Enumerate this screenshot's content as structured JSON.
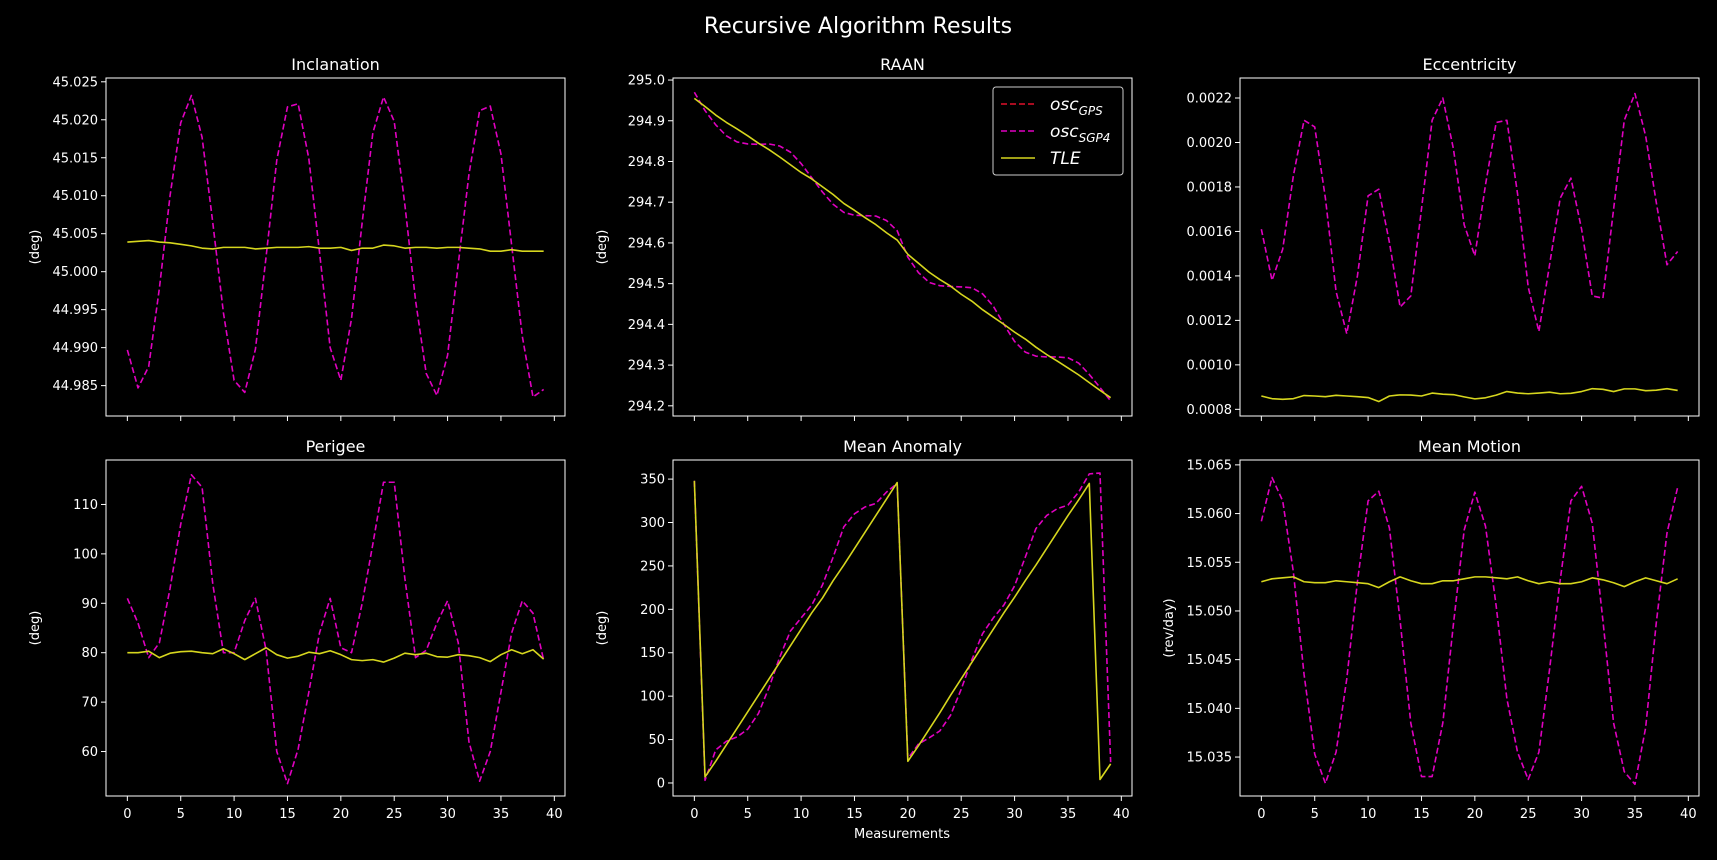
{
  "figure": {
    "title": "Recursive Algorithm Results",
    "xlabel": "Measurements"
  },
  "colors": {
    "background": "#000000",
    "axes": "#ffffff",
    "osc_gps": "#e0102a",
    "osc_sgp4": "#e000c0",
    "tle": "#d6d61e"
  },
  "legend": {
    "placement": "top-right",
    "panel": "raan",
    "entries": [
      {
        "key": "osc_gps",
        "base": "osc",
        "sub": "GPS",
        "style": "dashed"
      },
      {
        "key": "osc_sgp4",
        "base": "osc",
        "sub": "SGP4",
        "style": "dashed"
      },
      {
        "key": "tle",
        "base": "TLE",
        "sub": "",
        "style": "solid"
      }
    ]
  },
  "chart_data": [
    {
      "id": "inclination",
      "type": "line",
      "title": "Inclanation",
      "ylabel": "(deg)",
      "xlabel": "",
      "xlim": [
        -2,
        41
      ],
      "ylim": [
        44.981,
        45.0255
      ],
      "xticks": [
        0,
        5,
        10,
        15,
        20,
        25,
        30,
        35,
        40
      ],
      "xtick_labels": [
        "",
        "",
        "",
        "",
        "",
        "",
        "",
        "",
        ""
      ],
      "yticks": [
        44.985,
        44.99,
        44.995,
        45.0,
        45.005,
        45.01,
        45.015,
        45.02,
        45.025
      ],
      "ytick_labels": [
        "44.985",
        "44.990",
        "44.995",
        "45.000",
        "45.005",
        "45.010",
        "45.015",
        "45.020",
        "45.025"
      ],
      "series": [
        {
          "key": "osc_sgp4",
          "values": [
            44.9897,
            44.9847,
            44.9875,
            44.9978,
            45.01,
            45.0196,
            45.0232,
            45.0177,
            45.0065,
            44.9946,
            44.9857,
            44.9841,
            44.9898,
            45.002,
            45.0147,
            45.0217,
            45.0221,
            45.0149,
            45.0026,
            44.99,
            44.9857,
            44.9938,
            45.0065,
            45.0183,
            45.023,
            45.0198,
            45.0088,
            44.9962,
            44.9866,
            44.9837,
            44.989,
            45.001,
            45.0128,
            45.0212,
            45.0218,
            45.0155,
            45.0035,
            44.9915,
            44.9835,
            44.9845
          ]
        },
        {
          "key": "tle",
          "values": [
            45.0039,
            45.004,
            45.0041,
            45.0039,
            45.0038,
            45.0036,
            45.0034,
            45.0031,
            45.003,
            45.0032,
            45.0032,
            45.0032,
            45.003,
            45.0031,
            45.0032,
            45.0032,
            45.0032,
            45.0033,
            45.0031,
            45.0031,
            45.0032,
            45.0028,
            45.0031,
            45.0031,
            45.0035,
            45.0034,
            45.0031,
            45.0032,
            45.0032,
            45.0031,
            45.0032,
            45.0032,
            45.0031,
            45.003,
            45.0027,
            45.0027,
            45.0029,
            45.0027,
            45.0027,
            45.0027
          ]
        }
      ]
    },
    {
      "id": "raan",
      "type": "line",
      "title": "RAAN",
      "ylabel": "(deg)",
      "xlabel": "",
      "xlim": [
        -2,
        41
      ],
      "ylim": [
        294.175,
        295.005
      ],
      "xticks": [
        0,
        5,
        10,
        15,
        20,
        25,
        30,
        35,
        40
      ],
      "xtick_labels": [
        "",
        "",
        "",
        "",
        "",
        "",
        "",
        "",
        ""
      ],
      "yticks": [
        294.2,
        294.3,
        294.4,
        294.5,
        294.6,
        294.7,
        294.8,
        294.9,
        295.0
      ],
      "ytick_labels": [
        "294.2",
        "294.3",
        "294.4",
        "294.5",
        "294.6",
        "294.7",
        "294.8",
        "294.9",
        "295.0"
      ],
      "series": [
        {
          "key": "osc_sgp4",
          "values": [
            294.97,
            294.925,
            294.89,
            294.863,
            294.848,
            294.843,
            294.842,
            294.843,
            294.838,
            294.823,
            294.795,
            294.76,
            294.725,
            294.695,
            294.675,
            294.668,
            294.667,
            294.666,
            294.655,
            294.63,
            294.565,
            294.527,
            294.503,
            294.495,
            294.493,
            294.492,
            294.49,
            294.475,
            294.445,
            294.4,
            294.358,
            294.332,
            294.322,
            294.32,
            294.32,
            294.318,
            294.305,
            294.277,
            294.245,
            294.212
          ]
        },
        {
          "key": "tle",
          "values": [
            294.955,
            294.935,
            294.914,
            294.896,
            294.88,
            294.863,
            294.845,
            294.829,
            294.811,
            294.792,
            294.773,
            294.757,
            294.738,
            294.719,
            294.697,
            294.68,
            294.662,
            294.645,
            294.625,
            294.607,
            294.572,
            294.55,
            294.528,
            294.51,
            294.494,
            294.474,
            294.457,
            294.436,
            294.418,
            294.4,
            294.381,
            294.364,
            294.344,
            294.326,
            294.31,
            294.293,
            294.276,
            294.257,
            294.238,
            294.22
          ]
        }
      ]
    },
    {
      "id": "eccentricity",
      "type": "line",
      "title": "Eccentricity",
      "ylabel": "",
      "xlabel": "",
      "xlim": [
        -2,
        41
      ],
      "ylim": [
        0.00077,
        0.00229
      ],
      "xticks": [
        0,
        5,
        10,
        15,
        20,
        25,
        30,
        35,
        40
      ],
      "xtick_labels": [
        "",
        "",
        "",
        "",
        "",
        "",
        "",
        "",
        ""
      ],
      "yticks": [
        0.0008,
        0.001,
        0.0012,
        0.0014,
        0.0016,
        0.0018,
        0.002,
        0.0022
      ],
      "ytick_labels": [
        "0.0008",
        "0.0010",
        "0.0012",
        "0.0014",
        "0.0016",
        "0.0018",
        "0.0020",
        "0.0022"
      ],
      "series": [
        {
          "key": "osc_sgp4",
          "values": [
            0.00161,
            0.00138,
            0.00152,
            0.00185,
            0.0021,
            0.00207,
            0.00175,
            0.00133,
            0.00114,
            0.0014,
            0.00176,
            0.00179,
            0.00155,
            0.00126,
            0.00131,
            0.0017,
            0.0021,
            0.0022,
            0.00197,
            0.00163,
            0.00149,
            0.00181,
            0.00209,
            0.0021,
            0.00177,
            0.00135,
            0.00115,
            0.00145,
            0.00175,
            0.00184,
            0.00161,
            0.00131,
            0.0013,
            0.0017,
            0.0021,
            0.00222,
            0.00203,
            0.00173,
            0.00145,
            0.00151
          ]
        },
        {
          "key": "tle",
          "values": [
            0.00086,
            0.000848,
            0.000845,
            0.000848,
            0.000862,
            0.00086,
            0.000857,
            0.000863,
            0.00086,
            0.000857,
            0.000853,
            0.000835,
            0.00086,
            0.000865,
            0.000864,
            0.00086,
            0.000873,
            0.000868,
            0.000866,
            0.000856,
            0.000847,
            0.000852,
            0.000864,
            0.00088,
            0.000873,
            0.00087,
            0.000873,
            0.000877,
            0.00087,
            0.000872,
            0.00088,
            0.000893,
            0.00089,
            0.00088,
            0.000892,
            0.000892,
            0.000884,
            0.000886,
            0.000893,
            0.000885
          ]
        }
      ]
    },
    {
      "id": "perigee",
      "type": "line",
      "title": "Perigee",
      "ylabel": "(deg)",
      "xlabel": "",
      "xlim": [
        -2,
        41
      ],
      "ylim": [
        51,
        119
      ],
      "xticks": [
        0,
        5,
        10,
        15,
        20,
        25,
        30,
        35,
        40
      ],
      "xtick_labels": [
        "0",
        "5",
        "10",
        "15",
        "20",
        "25",
        "30",
        "35",
        "40"
      ],
      "yticks": [
        60,
        70,
        80,
        90,
        100,
        110
      ],
      "ytick_labels": [
        "60",
        "70",
        "80",
        "90",
        "100",
        "110"
      ],
      "series": [
        {
          "key": "osc_sgp4",
          "values": [
            91.0,
            86.0,
            79.0,
            82.0,
            93.0,
            106.0,
            116.0,
            113.5,
            94.0,
            80.0,
            80.0,
            86.5,
            91.0,
            80.5,
            60.0,
            53.5,
            60.5,
            72.0,
            84.0,
            91.0,
            81.0,
            80.0,
            90.0,
            102.0,
            114.5,
            114.5,
            95.0,
            79.0,
            80.5,
            86.0,
            90.5,
            82.0,
            62.0,
            54.0,
            60.0,
            72.0,
            84.0,
            90.5,
            88.0,
            78.5
          ]
        },
        {
          "key": "tle",
          "values": [
            80.0,
            80.0,
            80.3,
            79.0,
            79.9,
            80.2,
            80.3,
            80.0,
            79.8,
            80.8,
            79.8,
            78.6,
            79.8,
            81.0,
            79.6,
            78.9,
            79.3,
            80.1,
            79.8,
            80.4,
            79.6,
            78.6,
            78.4,
            78.6,
            78.1,
            78.9,
            79.9,
            79.6,
            79.9,
            79.2,
            79.1,
            79.6,
            79.4,
            79.0,
            78.2,
            79.6,
            80.6,
            79.8,
            80.6,
            78.7
          ]
        }
      ]
    },
    {
      "id": "mean_anomaly",
      "type": "line",
      "title": "Mean Anomaly",
      "ylabel": "(deg)",
      "xlabel": "Measurements",
      "xlim": [
        -2,
        41
      ],
      "ylim": [
        -15,
        372
      ],
      "xticks": [
        0,
        5,
        10,
        15,
        20,
        25,
        30,
        35,
        40
      ],
      "xtick_labels": [
        "0",
        "5",
        "10",
        "15",
        "20",
        "25",
        "30",
        "35",
        "40"
      ],
      "yticks": [
        0,
        50,
        100,
        150,
        200,
        250,
        300,
        350
      ],
      "ytick_labels": [
        "0",
        "50",
        "100",
        "150",
        "200",
        "250",
        "300",
        "350"
      ],
      "series": [
        {
          "key": "osc_sgp4",
          "values": [
            348,
            3,
            38,
            48,
            53,
            62,
            80,
            110,
            145,
            175,
            190,
            205,
            228,
            260,
            295,
            310,
            318,
            322,
            335,
            345,
            28,
            45,
            52,
            60,
            78,
            108,
            142,
            172,
            190,
            205,
            227,
            260,
            293,
            308,
            316,
            320,
            335,
            356,
            357,
            24
          ]
        },
        {
          "key": "tle",
          "values": [
            348,
            7,
            25,
            44,
            63,
            82,
            101,
            120,
            139,
            158,
            177,
            196,
            213,
            233,
            251,
            270,
            289,
            308,
            327,
            346,
            25,
            43,
            62,
            81,
            101,
            120,
            139,
            158,
            177,
            196,
            214,
            233,
            251,
            270,
            289,
            308,
            326,
            345,
            4,
            22
          ]
        }
      ]
    },
    {
      "id": "mean_motion",
      "type": "line",
      "title": "Mean Motion",
      "ylabel": "(rev/day)",
      "xlabel": "",
      "xlim": [
        -2,
        41
      ],
      "ylim": [
        15.031,
        15.0655
      ],
      "xticks": [
        0,
        5,
        10,
        15,
        20,
        25,
        30,
        35,
        40
      ],
      "xtick_labels": [
        "0",
        "5",
        "10",
        "15",
        "20",
        "25",
        "30",
        "35",
        "40"
      ],
      "yticks": [
        15.035,
        15.04,
        15.045,
        15.05,
        15.055,
        15.06,
        15.065
      ],
      "ytick_labels": [
        "15.035",
        "15.040",
        "15.045",
        "15.050",
        "15.055",
        "15.060",
        "15.065"
      ],
      "series": [
        {
          "key": "osc_sgp4",
          "values": [
            15.0592,
            15.0637,
            15.0613,
            15.054,
            15.0435,
            15.0353,
            15.0323,
            15.0355,
            15.043,
            15.053,
            15.0613,
            15.0623,
            15.0585,
            15.049,
            15.0385,
            15.033,
            15.033,
            15.0385,
            15.0487,
            15.0583,
            15.0622,
            15.0587,
            15.0505,
            15.041,
            15.0355,
            15.0327,
            15.0355,
            15.044,
            15.0532,
            15.0613,
            15.0628,
            15.059,
            15.049,
            15.0385,
            15.0335,
            15.0322,
            15.038,
            15.0488,
            15.058,
            15.0627
          ]
        },
        {
          "key": "tle",
          "values": [
            15.053,
            15.0533,
            15.0534,
            15.0535,
            15.053,
            15.0529,
            15.0529,
            15.0531,
            15.053,
            15.0529,
            15.0528,
            15.0524,
            15.053,
            15.0535,
            15.0531,
            15.0528,
            15.0528,
            15.0531,
            15.0531,
            15.0533,
            15.0535,
            15.0535,
            15.0534,
            15.0533,
            15.0535,
            15.0531,
            15.0528,
            15.053,
            15.0528,
            15.0528,
            15.053,
            15.0534,
            15.0532,
            15.0529,
            15.0525,
            15.053,
            15.0534,
            15.0531,
            15.0528,
            15.0533
          ]
        }
      ]
    }
  ]
}
